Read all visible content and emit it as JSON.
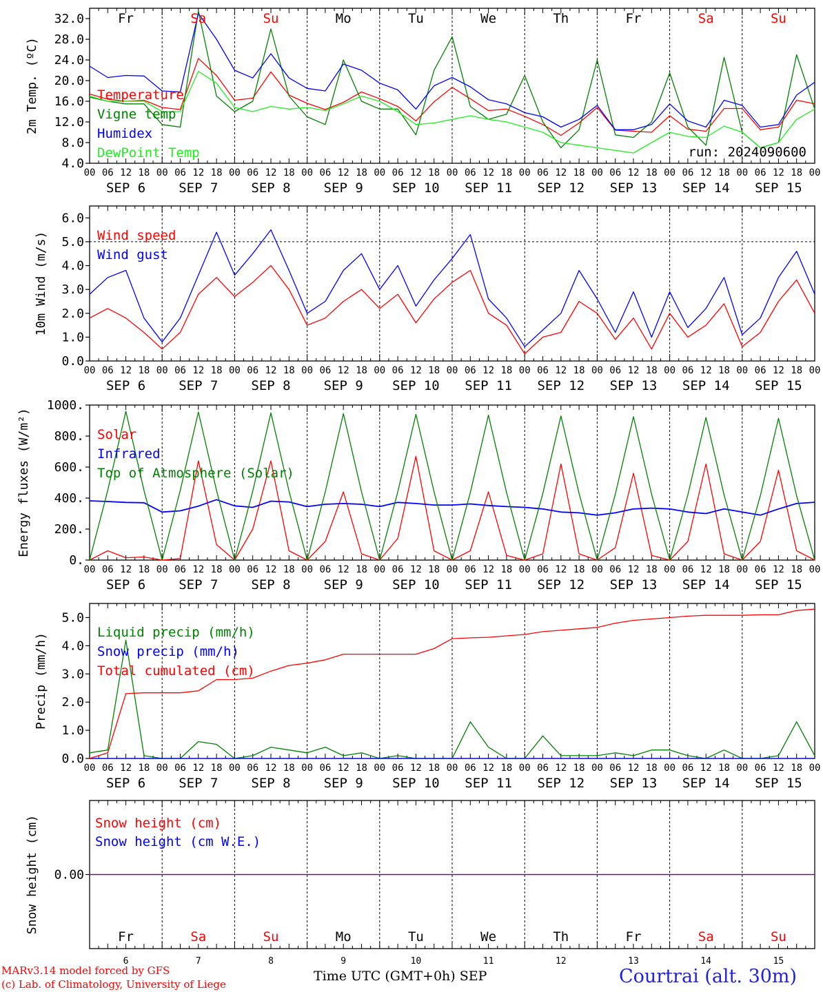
{
  "colors": {
    "red": "#ff0000",
    "green": "#008000",
    "blue": "#0000ff",
    "lightgreen": "#22ee22",
    "purple": "#800080",
    "axis": "#000000"
  },
  "days": {
    "weekday_labels": [
      "Fr",
      "Sa",
      "Su",
      "Mo",
      "Tu",
      "We",
      "Th",
      "Fr",
      "Sa",
      "Su"
    ],
    "weekend_flags": [
      false,
      true,
      true,
      false,
      false,
      false,
      false,
      false,
      true,
      true
    ],
    "date_labels": [
      "SEP  6",
      "SEP  7",
      "SEP  8",
      "SEP  9",
      "SEP 10",
      "SEP 11",
      "SEP 12",
      "SEP 13",
      "SEP 14",
      "SEP 15"
    ],
    "hour_labels": [
      "00",
      "06",
      "12",
      "18"
    ],
    "end_hour_label": "00",
    "day_numbers": [
      "6",
      "7",
      "8",
      "9",
      "10",
      "11",
      "12",
      "13",
      "14",
      "15"
    ]
  },
  "chart_data": [
    {
      "type": "line",
      "ylabel": "2m Temp. (ºC)",
      "ylim": [
        4,
        34
      ],
      "yticks": [
        "4.0",
        "8.0",
        "12.0",
        "16.0",
        "20.0",
        "24.0",
        "28.0",
        "32.0"
      ],
      "annotation": "run: 2024090600",
      "x_hours": [
        0,
        6,
        12,
        18,
        24,
        30,
        36,
        42,
        48,
        54,
        60,
        66,
        72,
        78,
        84,
        90,
        96,
        102,
        108,
        114,
        120,
        126,
        132,
        138,
        144,
        150,
        156,
        162,
        168,
        174,
        180,
        186,
        192,
        198,
        204,
        210,
        216,
        222,
        228,
        234,
        240
      ],
      "series": [
        {
          "name": "Temperature",
          "color": "red",
          "values": [
            17.4,
            16.4,
            16.0,
            16.2,
            14.8,
            14.4,
            24.3,
            21.0,
            16.2,
            16.6,
            21.7,
            17.2,
            15.6,
            14.4,
            15.8,
            17.8,
            16.5,
            15.0,
            12.2,
            15.9,
            18.7,
            16.5,
            14.2,
            14.5,
            13.1,
            11.5,
            9.4,
            11.8,
            14.8,
            10.4,
            10.2,
            10.0,
            13.2,
            10.6,
            10.2,
            14.6,
            14.6,
            10.5,
            11.0,
            16.2,
            15.5
          ]
        },
        {
          "name": "Vigne temp",
          "color": "green",
          "values": [
            16.8,
            16.0,
            15.5,
            15.5,
            11.5,
            11.0,
            33.5,
            17.0,
            14.0,
            16.0,
            30.0,
            17.0,
            13.0,
            11.5,
            24.0,
            16.0,
            14.5,
            14.5,
            9.5,
            22.0,
            28.5,
            15.0,
            12.5,
            13.5,
            21.0,
            12.0,
            7.0,
            10.5,
            24.0,
            9.5,
            9.0,
            12.0,
            21.5,
            11.0,
            7.5,
            24.5,
            10.0,
            7.0,
            8.0,
            25.0,
            14.5
          ]
        },
        {
          "name": "Humidex",
          "color": "blue",
          "values": [
            22.8,
            20.6,
            21.0,
            20.9,
            18.0,
            17.8,
            33.0,
            28.0,
            22.0,
            20.5,
            25.2,
            20.5,
            18.5,
            18.0,
            23.2,
            22.0,
            19.5,
            18.2,
            14.5,
            19.0,
            20.6,
            18.8,
            16.3,
            15.5,
            13.8,
            13.0,
            11.0,
            12.5,
            15.2,
            10.5,
            10.5,
            11.5,
            15.5,
            12.2,
            11.0,
            16.2,
            15.2,
            11.0,
            11.5,
            17.2,
            19.7
          ]
        },
        {
          "name": "DewPoint Temp",
          "color": "lightgreen",
          "values": [
            17.0,
            16.0,
            16.0,
            16.0,
            14.0,
            14.0,
            21.8,
            19.5,
            14.8,
            14.0,
            15.0,
            14.5,
            14.8,
            14.2,
            15.5,
            17.0,
            16.0,
            14.0,
            11.5,
            11.8,
            12.5,
            13.2,
            12.5,
            12.0,
            11.0,
            10.0,
            8.0,
            7.5,
            7.0,
            6.5,
            6.0,
            8.0,
            10.0,
            9.2,
            9.0,
            11.2,
            10.0,
            7.0,
            8.0,
            12.5,
            14.5
          ]
        }
      ]
    },
    {
      "type": "line",
      "ylabel": "10m Wind (m/s)",
      "ylim": [
        0,
        6.5
      ],
      "yticks": [
        "0.0",
        "1.0",
        "2.0",
        "3.0",
        "4.0",
        "5.0",
        "6.0"
      ],
      "ref_line": 5.0,
      "x_hours": [
        0,
        6,
        12,
        18,
        24,
        30,
        36,
        42,
        48,
        54,
        60,
        66,
        72,
        78,
        84,
        90,
        96,
        102,
        108,
        114,
        120,
        126,
        132,
        138,
        144,
        150,
        156,
        162,
        168,
        174,
        180,
        186,
        192,
        198,
        204,
        210,
        216,
        222,
        228,
        234,
        240
      ],
      "series": [
        {
          "name": "Wind speed",
          "color": "red",
          "values": [
            1.8,
            2.2,
            1.8,
            1.2,
            0.5,
            1.2,
            2.8,
            3.5,
            2.7,
            3.3,
            4.0,
            3.0,
            1.5,
            1.8,
            2.5,
            3.0,
            2.2,
            2.8,
            1.6,
            2.6,
            3.3,
            3.8,
            2.0,
            1.5,
            0.3,
            1.0,
            1.2,
            2.5,
            2.0,
            0.9,
            1.8,
            0.5,
            2.0,
            1.0,
            1.5,
            2.4,
            0.6,
            1.2,
            2.5,
            3.4,
            2.0
          ]
        },
        {
          "name": "Wind gust",
          "color": "blue",
          "values": [
            2.8,
            3.5,
            3.8,
            1.8,
            0.8,
            1.8,
            3.6,
            5.4,
            3.6,
            4.5,
            5.5,
            3.8,
            2.0,
            2.5,
            3.8,
            4.5,
            3.0,
            4.0,
            2.3,
            3.4,
            4.3,
            5.3,
            2.6,
            1.8,
            0.6,
            1.3,
            2.0,
            3.8,
            2.6,
            1.2,
            2.9,
            1.0,
            2.9,
            1.4,
            2.2,
            3.5,
            1.1,
            1.8,
            3.5,
            4.6,
            2.8
          ]
        }
      ]
    },
    {
      "type": "line",
      "ylabel": "Energy fluxes (W/m²)",
      "ylim": [
        0,
        1000
      ],
      "yticks": [
        "0.",
        "200.",
        "400.",
        "600.",
        "800.",
        "1000."
      ],
      "x_hours": [
        0,
        6,
        12,
        18,
        24,
        30,
        36,
        42,
        48,
        54,
        60,
        66,
        72,
        78,
        84,
        90,
        96,
        102,
        108,
        114,
        120,
        126,
        132,
        138,
        144,
        150,
        156,
        162,
        168,
        174,
        180,
        186,
        192,
        198,
        204,
        210,
        216,
        222,
        228,
        234,
        240
      ],
      "series": [
        {
          "name": "Solar",
          "color": "red",
          "values": [
            0,
            60,
            15,
            20,
            0,
            10,
            640,
            100,
            0,
            200,
            640,
            60,
            0,
            120,
            440,
            40,
            0,
            140,
            670,
            60,
            0,
            60,
            440,
            30,
            0,
            40,
            620,
            40,
            0,
            80,
            560,
            30,
            0,
            120,
            620,
            40,
            0,
            120,
            580,
            60,
            0
          ]
        },
        {
          "name": "Infrared",
          "color": "blue",
          "values": [
            382,
            378,
            372,
            370,
            310,
            318,
            348,
            390,
            350,
            340,
            380,
            375,
            345,
            360,
            365,
            360,
            345,
            372,
            365,
            355,
            355,
            362,
            352,
            345,
            340,
            330,
            310,
            305,
            290,
            305,
            330,
            335,
            330,
            310,
            300,
            330,
            310,
            290,
            330,
            365,
            373
          ]
        },
        {
          "name": "Top of Atmosphere (Solar)",
          "color": "green",
          "values": [
            0,
            450,
            960,
            450,
            0,
            450,
            955,
            450,
            0,
            445,
            950,
            445,
            0,
            440,
            945,
            440,
            0,
            440,
            940,
            440,
            0,
            435,
            935,
            435,
            0,
            430,
            930,
            430,
            0,
            425,
            925,
            425,
            0,
            420,
            920,
            420,
            0,
            415,
            915,
            415,
            0
          ]
        }
      ]
    },
    {
      "type": "line",
      "ylabel": "Precip (mm/h)",
      "ylim": [
        0,
        5.5
      ],
      "yticks": [
        "0.0",
        "1.0",
        "2.0",
        "3.0",
        "4.0",
        "5.0"
      ],
      "x_hours": [
        0,
        6,
        12,
        18,
        24,
        30,
        36,
        42,
        48,
        54,
        60,
        66,
        72,
        78,
        84,
        90,
        96,
        102,
        108,
        114,
        120,
        126,
        132,
        138,
        144,
        150,
        156,
        162,
        168,
        174,
        180,
        186,
        192,
        198,
        204,
        210,
        216,
        222,
        228,
        234,
        240
      ],
      "series": [
        {
          "name": "Liquid precip (mm/h)",
          "color": "green",
          "values": [
            0.2,
            0.3,
            4.2,
            0.1,
            0.0,
            0.0,
            0.6,
            0.5,
            0.0,
            0.1,
            0.4,
            0.3,
            0.2,
            0.4,
            0.1,
            0.2,
            0.0,
            0.1,
            0.0,
            0.0,
            0.0,
            1.3,
            0.4,
            0.0,
            0.0,
            0.8,
            0.1,
            0.1,
            0.1,
            0.2,
            0.1,
            0.3,
            0.3,
            0.1,
            0.0,
            0.3,
            0.0,
            0.0,
            0.1,
            1.3,
            0.1
          ]
        },
        {
          "name": "Snow precip (mm/h)",
          "color": "blue",
          "values": [
            0,
            0,
            0,
            0,
            0,
            0,
            0,
            0,
            0,
            0,
            0,
            0,
            0,
            0,
            0,
            0,
            0,
            0,
            0,
            0,
            0,
            0,
            0,
            0,
            0,
            0,
            0,
            0,
            0,
            0,
            0,
            0,
            0,
            0,
            0,
            0,
            0,
            0,
            0,
            0,
            0
          ]
        },
        {
          "name": "Total cumulated (cm)",
          "color": "red",
          "values": [
            0.0,
            0.2,
            2.3,
            2.33,
            2.33,
            2.33,
            2.4,
            2.8,
            2.8,
            2.85,
            3.1,
            3.3,
            3.38,
            3.5,
            3.7,
            3.7,
            3.7,
            3.7,
            3.7,
            3.9,
            4.25,
            4.28,
            4.3,
            4.35,
            4.4,
            4.5,
            4.55,
            4.6,
            4.65,
            4.8,
            4.9,
            4.95,
            5.0,
            5.05,
            5.08,
            5.08,
            5.08,
            5.1,
            5.1,
            5.25,
            5.3
          ]
        }
      ]
    },
    {
      "type": "line",
      "ylabel": "Snow height (cm)",
      "ylim": [
        -1,
        1
      ],
      "yticks": [
        "0.00"
      ],
      "x_hours": [
        0,
        240
      ],
      "series": [
        {
          "name": "Snow height (cm)",
          "color": "red",
          "values": [
            0,
            0
          ]
        },
        {
          "name": "Snow height (cm W.E.)",
          "color": "blue",
          "values": [
            0,
            0
          ]
        }
      ]
    }
  ],
  "footer": {
    "credit_line1": "MARv3.14 model forced by GFS",
    "credit_line2": "(c) Lab. of Climatology, University of Liege",
    "xaxis_title": "Time UTC (GMT+0h) SEP",
    "station": "Courtrai (alt. 30m)"
  }
}
